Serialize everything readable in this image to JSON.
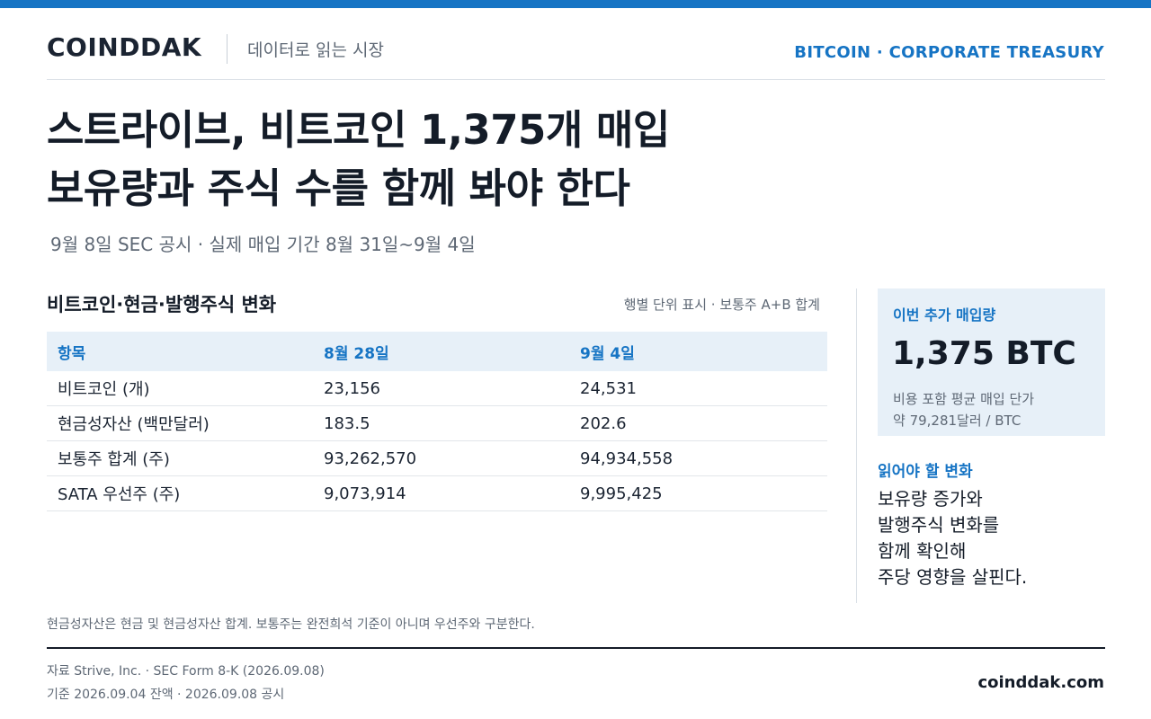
{
  "header": {
    "logo": "COINDDAK",
    "tagline": "데이터로 읽는 시장",
    "section": "BITCOIN · CORPORATE TREASURY"
  },
  "headline": {
    "line1": "스트라이브, 비트코인 1,375개 매입",
    "line2": "보유량과 주식 수를 함께 봐야 한다"
  },
  "subline": "9월 8일 SEC 공시 · 실제 매입 기간 8월 31일~9월 4일",
  "table": {
    "title": "비트코인·현금·발행주식 변화",
    "note": "행별 단위 표시 · 보통주 A+B 합계",
    "headers": [
      "항목",
      "8월 28일",
      "9월 4일"
    ],
    "rows": [
      [
        "비트코인 (개)",
        "23,156",
        "24,531"
      ],
      [
        "현금성자산 (백만달러)",
        "183.5",
        "202.6"
      ],
      [
        "보통주 합계 (주)",
        "93,262,570",
        "94,934,558"
      ],
      [
        "SATA 우선주 (주)",
        "9,073,914",
        "9,995,425"
      ]
    ]
  },
  "callout": {
    "label": "이번 추가 매입량",
    "value": "1,375 BTC",
    "note_line1": "비용 포함 평균 매입 단가",
    "note_line2": "약 79,281달러 / BTC"
  },
  "read": {
    "heading": "읽어야 할 변화",
    "lines": [
      "보유량 증가와",
      "발행주식 변화를",
      "함께 확인해",
      "주당 영향을 살핀다."
    ]
  },
  "footer": {
    "footnote": "현금성자산은 현금 및 현금성자산 합계. 보통주는 완전희석 기준이 아니며 우선주와 구분한다.",
    "source": "자료  Strive, Inc. · SEC Form 8-K (2026.09.08)",
    "basis": "기준  2026.09.04 잔액 · 2026.09.08 공시",
    "site": "coinddak.com"
  }
}
